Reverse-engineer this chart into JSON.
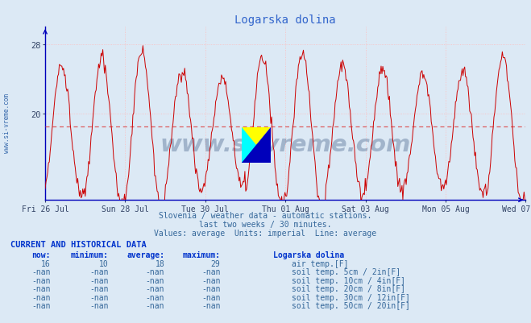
{
  "title": "Logarska dolina",
  "bg_color": "#dce9f5",
  "plot_bg_color": "#dce9f5",
  "line_color": "#cc0000",
  "average_line_color": "#dd4444",
  "average_value": 18.5,
  "ylim_min": 10,
  "ylim_max": 30,
  "ytick_values": [
    20,
    28
  ],
  "ytick_labels": [
    "20",
    "28"
  ],
  "grid_color": "#ffbbbb",
  "axis_color": "#0000bb",
  "x_labels": [
    "Fri 26 Jul",
    "Sun 28 Jul",
    "Tue 30 Jul",
    "Thu 01 Aug",
    "Sat 03 Aug",
    "Mon 05 Aug",
    "Wed 07 Aug"
  ],
  "subtitle_lines": [
    "Slovenia / weather data - automatic stations.",
    "last two weeks / 30 minutes.",
    "Values: average  Units: imperial  Line: average"
  ],
  "table_header": "CURRENT AND HISTORICAL DATA",
  "col_headers": [
    "now:",
    "minimum:",
    "average:",
    "maximum:",
    "Logarska dolina"
  ],
  "rows": [
    {
      "now": "16",
      "min": "10",
      "avg": "18",
      "max": "29",
      "color": "#cc0000",
      "label": "air temp.[F]"
    },
    {
      "now": "-nan",
      "min": "-nan",
      "avg": "-nan",
      "max": "-nan",
      "color": "#ddbbcc",
      "label": "soil temp. 5cm / 2in[F]"
    },
    {
      "now": "-nan",
      "min": "-nan",
      "avg": "-nan",
      "max": "-nan",
      "color": "#cc8833",
      "label": "soil temp. 10cm / 4in[F]"
    },
    {
      "now": "-nan",
      "min": "-nan",
      "avg": "-nan",
      "max": "-nan",
      "color": "#aa8800",
      "label": "soil temp. 20cm / 8in[F]"
    },
    {
      "now": "-nan",
      "min": "-nan",
      "avg": "-nan",
      "max": "-nan",
      "color": "#668844",
      "label": "soil temp. 30cm / 12in[F]"
    },
    {
      "now": "-nan",
      "min": "-nan",
      "avg": "-nan",
      "max": "-nan",
      "color": "#773300",
      "label": "soil temp. 50cm / 20in[F]"
    }
  ],
  "watermark": "www.si-vreme.com",
  "watermark_color": "#1a3a6a",
  "sidebar_text": "www.si-vreme.com",
  "sidebar_color": "#3366aa"
}
